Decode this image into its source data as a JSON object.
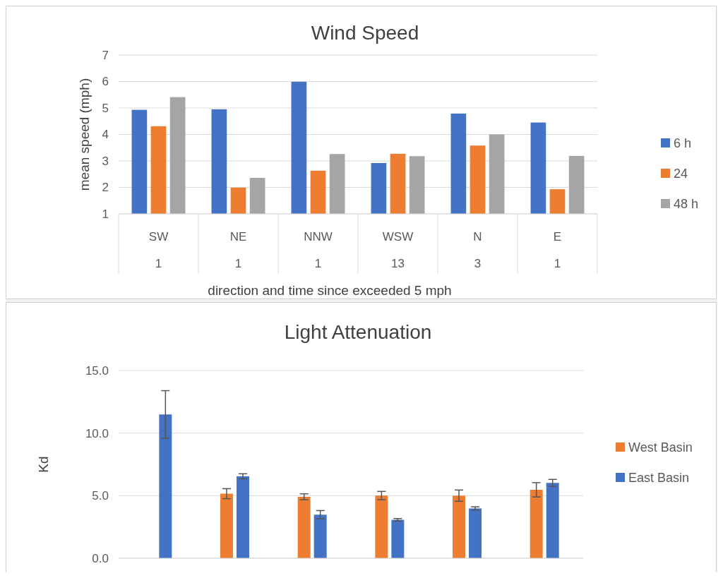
{
  "chart_data": [
    {
      "type": "bar",
      "title": "Wind Speed",
      "xlabel": "direction and time since exceeded 5 mph",
      "ylabel": "mean  speed (mph)",
      "categories": [
        "SW",
        "NE",
        "NNW",
        "WSW",
        "N",
        "E"
      ],
      "series": [
        {
          "name": "6 h",
          "color": "#4472c4",
          "values": [
            4.93,
            4.95,
            5.99,
            2.92,
            4.79,
            4.45
          ]
        },
        {
          "name": "24",
          "color": "#ed7d31",
          "values": [
            4.31,
            1.99,
            2.63,
            3.27,
            3.58,
            1.93
          ]
        },
        {
          "name": "48 h",
          "color": "#a5a5a5",
          "values": [
            5.41,
            2.36,
            3.26,
            3.18,
            4.0,
            3.19
          ]
        }
      ],
      "ylim": [
        1,
        7
      ],
      "yticks": [
        1,
        2,
        3,
        4,
        5,
        6,
        7
      ],
      "grid": "y",
      "legend": "right",
      "annotations": [
        "1",
        "1",
        "1",
        "13",
        "3",
        "1"
      ]
    },
    {
      "type": "bar",
      "title": "Light Attenuation",
      "ylabel": "Kd",
      "categories": [
        null,
        null,
        null,
        null,
        null,
        null
      ],
      "series": [
        {
          "name": "West Basin",
          "color": "#ed7d31",
          "values": [
            null,
            5.16,
            4.91,
            5.01,
            5.0,
            5.47
          ],
          "errors": [
            null,
            0.4,
            0.24,
            0.33,
            0.45,
            0.57
          ]
        },
        {
          "name": "East Basin",
          "color": "#4472c4",
          "values": [
            11.49,
            6.55,
            3.48,
            3.07,
            3.98,
            6.02
          ],
          "errors": [
            1.9,
            0.2,
            0.33,
            0.1,
            0.13,
            0.28
          ]
        }
      ],
      "ylim": [
        0,
        15
      ],
      "yticks": [
        {
          "value": 0,
          "label": "0.0"
        },
        {
          "value": 5,
          "label": "5.0"
        },
        {
          "value": 10,
          "label": "10.0"
        },
        {
          "value": 15,
          "label": "15.0"
        }
      ],
      "grid": "y",
      "legend": "right"
    }
  ]
}
